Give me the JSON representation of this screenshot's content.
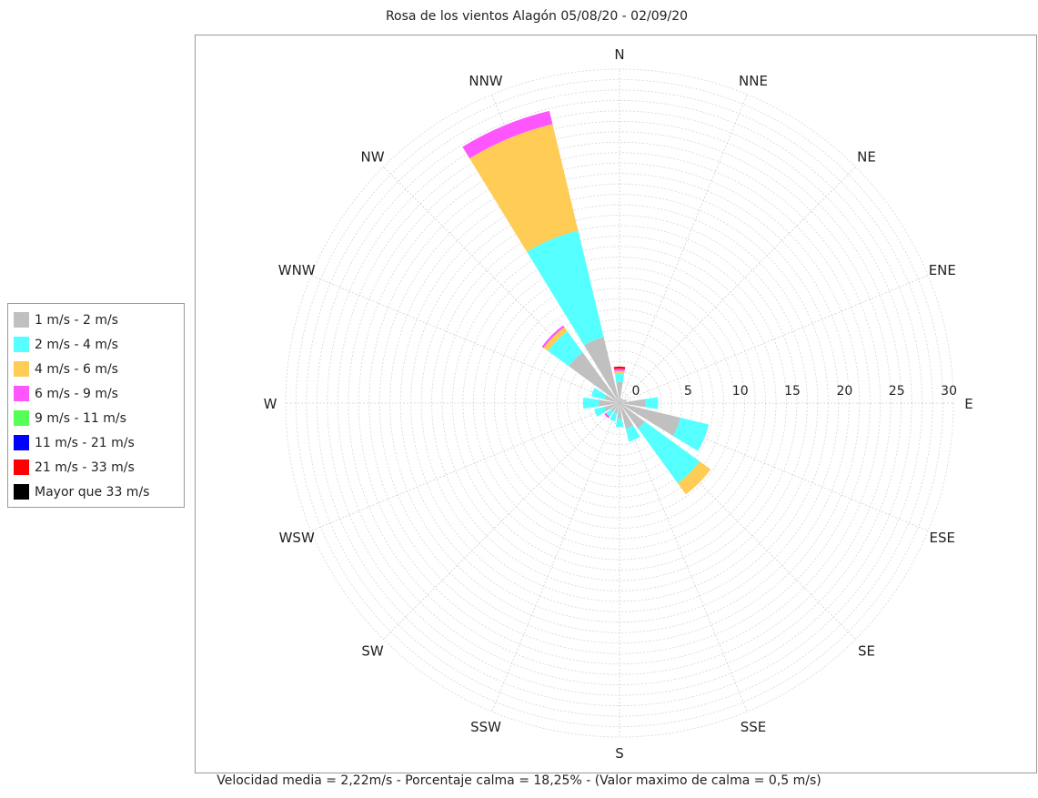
{
  "chart_data": {
    "type": "wind-rose",
    "title": "Rosa de los vientos Alagón 05/08/20 - 02/09/20",
    "footer": "Velocidad media = 2,22m/s - Porcentaje calma = 18,25% -  (Valor maximo de calma = 0,5 m/s)",
    "radial_max": 32,
    "radial_ticks": [
      0,
      5,
      10,
      15,
      20,
      25,
      30
    ],
    "directions": [
      "N",
      "NNE",
      "NE",
      "ENE",
      "E",
      "ESE",
      "SE",
      "SSE",
      "S",
      "SSW",
      "SW",
      "WSW",
      "W",
      "WNW",
      "NW",
      "NNW"
    ],
    "series": [
      {
        "name": "1 m/s - 2 m/s",
        "color": "#c0c0c0",
        "values": [
          2,
          0.5,
          0.5,
          0.7,
          2.5,
          6,
          3,
          2.5,
          1.5,
          1,
          1,
          1.5,
          2,
          1.5,
          6,
          6.5
        ]
      },
      {
        "name": "2 m/s - 4 m/s",
        "color": "#55ffff",
        "values": [
          0.8,
          0,
          0,
          0,
          1.2,
          2.8,
          6.5,
          1.3,
          0.8,
          0.8,
          0.6,
          1,
          1.5,
          1.3,
          2.5,
          10.5
        ]
      },
      {
        "name": "4 m/s - 6 m/s",
        "color": "#ffcc55",
        "values": [
          0.3,
          0,
          0,
          0,
          0,
          0,
          1.3,
          0,
          0,
          0,
          0,
          0,
          0,
          0,
          0.5,
          10.5
        ]
      },
      {
        "name": "6 m/s - 9 m/s",
        "color": "#ff55ff",
        "values": [
          0.2,
          0,
          0,
          0,
          0,
          0,
          0,
          0,
          0,
          0,
          0.2,
          0,
          0,
          0,
          0.2,
          1.3
        ]
      },
      {
        "name": "9 m/s - 11 m/s",
        "color": "#55ff55",
        "values": [
          0,
          0,
          0,
          0,
          0,
          0,
          0,
          0,
          0,
          0,
          0,
          0,
          0,
          0,
          0,
          0
        ]
      },
      {
        "name": "11 m/s - 21 m/s",
        "color": "#0000ff",
        "values": [
          0,
          0,
          0,
          0,
          0,
          0,
          0,
          0,
          0,
          0,
          0,
          0,
          0,
          0,
          0,
          0
        ]
      },
      {
        "name": "21 m/s - 33 m/s",
        "color": "#ff0000",
        "values": [
          0.2,
          0,
          0,
          0,
          0,
          0,
          0,
          0,
          0,
          0,
          0,
          0,
          0,
          0,
          0,
          0
        ]
      },
      {
        "name": "Mayor que 33 m/s",
        "color": "#000000",
        "values": [
          0,
          0,
          0,
          0,
          0,
          0,
          0,
          0,
          0,
          0,
          0,
          0,
          0,
          0,
          0,
          0
        ]
      }
    ]
  }
}
